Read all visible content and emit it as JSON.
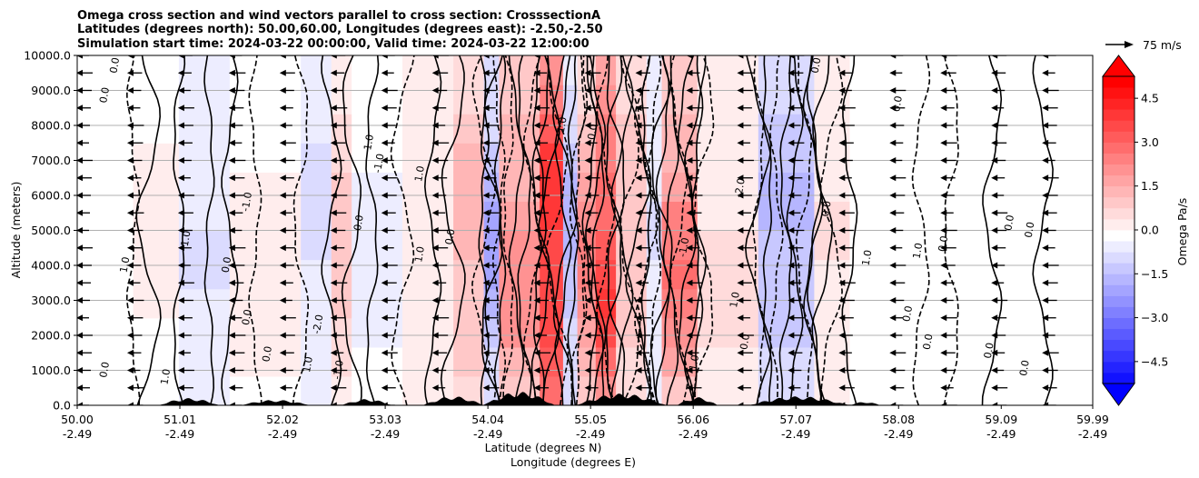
{
  "chart_data": {
    "type": "heatmap",
    "title_lines": [
      "Omega cross section and wind vectors parallel to cross section: CrosssectionA",
      "Latitudes (degrees north): 50.00,60.00, Longitudes (degrees east): -2.50,-2.50",
      "Simulation start time: 2024-03-22 00:00:00, Valid time: 2024-03-22 12:00:00"
    ],
    "xlabel_1": "Latitude (degrees N)",
    "xlabel_2": "Longitude (degrees E)",
    "ylabel": "Altitude (meters)",
    "xlim": [
      50.0,
      59.99
    ],
    "ylim": [
      0,
      10000
    ],
    "x_ticks": [
      {
        "lat": "50.00",
        "lon": "-2.49",
        "v": 50.0
      },
      {
        "lat": "51.01",
        "lon": "-2.49",
        "v": 51.01
      },
      {
        "lat": "52.02",
        "lon": "-2.49",
        "v": 52.02
      },
      {
        "lat": "53.03",
        "lon": "-2.49",
        "v": 53.03
      },
      {
        "lat": "54.04",
        "lon": "-2.49",
        "v": 54.04
      },
      {
        "lat": "55.05",
        "lon": "-2.49",
        "v": 55.05
      },
      {
        "lat": "56.06",
        "lon": "-2.49",
        "v": 56.06
      },
      {
        "lat": "57.07",
        "lon": "-2.49",
        "v": 57.07
      },
      {
        "lat": "58.08",
        "lon": "-2.49",
        "v": 58.08
      },
      {
        "lat": "59.09",
        "lon": "-2.49",
        "v": 59.09
      },
      {
        "lat": "59.99",
        "lon": "-2.49",
        "v": 59.99
      }
    ],
    "y_ticks": [
      {
        "label": "0.0",
        "v": 0
      },
      {
        "label": "1000.0",
        "v": 1000
      },
      {
        "label": "2000.0",
        "v": 2000
      },
      {
        "label": "3000.0",
        "v": 3000
      },
      {
        "label": "4000.0",
        "v": 4000
      },
      {
        "label": "5000.0",
        "v": 5000
      },
      {
        "label": "6000.0",
        "v": 6000
      },
      {
        "label": "7000.0",
        "v": 7000
      },
      {
        "label": "8000.0",
        "v": 8000
      },
      {
        "label": "9000.0",
        "v": 9000
      },
      {
        "label": "10000.0",
        "v": 10000
      }
    ],
    "y_grid": true,
    "colorbar": {
      "label": "Omega Pa/s",
      "range": [
        -5.25,
        5.25
      ],
      "step": 0.375,
      "ticks": [
        "4.5",
        "3.0",
        "1.5",
        "0.0",
        "−1.5",
        "−3.0",
        "−4.5"
      ],
      "tick_values": [
        4.5,
        3.0,
        1.5,
        0.0,
        -1.5,
        -3.0,
        -4.5
      ],
      "extend": "both",
      "colormap": "bwr",
      "neg_color": "#0000ff",
      "pos_color": "#ff0000"
    },
    "quiver_key": "75 m/s",
    "field": {
      "description_of_values": "approximate omega (Pa/s) in vertical bands",
      "bands": [
        {
          "lat_from": 50.0,
          "lat_to": 50.55,
          "omega": -0.1
        },
        {
          "lat_from": 50.55,
          "lat_to": 51.0,
          "omega": 0.3
        },
        {
          "lat_from": 51.0,
          "lat_to": 51.5,
          "omega": -0.6
        },
        {
          "lat_from": 51.5,
          "lat_to": 52.2,
          "omega": 0.3
        },
        {
          "lat_from": 52.2,
          "lat_to": 52.5,
          "omega": -0.8
        },
        {
          "lat_from": 52.5,
          "lat_to": 52.7,
          "omega": 1.3
        },
        {
          "lat_from": 52.7,
          "lat_to": 53.2,
          "omega": -0.3
        },
        {
          "lat_from": 53.2,
          "lat_to": 53.7,
          "omega": 0.5
        },
        {
          "lat_from": 53.7,
          "lat_to": 54.0,
          "omega": 1.8
        },
        {
          "lat_from": 54.0,
          "lat_to": 54.15,
          "omega": -1.8
        },
        {
          "lat_from": 54.15,
          "lat_to": 54.55,
          "omega": 2.6
        },
        {
          "lat_from": 54.55,
          "lat_to": 54.78,
          "omega": 5.4
        },
        {
          "lat_from": 54.78,
          "lat_to": 54.92,
          "omega": -1.5
        },
        {
          "lat_from": 54.92,
          "lat_to": 55.1,
          "omega": 2.6
        },
        {
          "lat_from": 55.1,
          "lat_to": 55.3,
          "omega": 4.6
        },
        {
          "lat_from": 55.3,
          "lat_to": 55.6,
          "omega": 1.5
        },
        {
          "lat_from": 55.6,
          "lat_to": 55.75,
          "omega": -0.6
        },
        {
          "lat_from": 55.75,
          "lat_to": 56.1,
          "omega": 3.0
        },
        {
          "lat_from": 56.1,
          "lat_to": 56.7,
          "omega": 0.8
        },
        {
          "lat_from": 56.7,
          "lat_to": 57.25,
          "omega": -1.6
        },
        {
          "lat_from": 57.25,
          "lat_to": 57.6,
          "omega": 0.6
        },
        {
          "lat_from": 57.6,
          "lat_to": 58.3,
          "omega": -0.2
        },
        {
          "lat_from": 58.3,
          "lat_to": 59.0,
          "omega": 0.2
        },
        {
          "lat_from": 59.0,
          "lat_to": 59.99,
          "omega": 0.1
        }
      ]
    },
    "contour_labels": [
      {
        "text": "0.0",
        "lat": 50.4,
        "alt": 9700
      },
      {
        "text": "0.0",
        "lat": 50.3,
        "alt": 8850
      },
      {
        "text": "1.0",
        "lat": 50.5,
        "alt": 4000
      },
      {
        "text": "0.0",
        "lat": 50.3,
        "alt": 1000
      },
      {
        "text": "1.0",
        "lat": 50.9,
        "alt": 800
      },
      {
        "text": "1.0",
        "lat": 51.1,
        "alt": 4750
      },
      {
        "text": "0.0",
        "lat": 51.5,
        "alt": 4000
      },
      {
        "text": "0.0",
        "lat": 51.7,
        "alt": 2500
      },
      {
        "text": "0.0",
        "lat": 51.9,
        "alt": 1450
      },
      {
        "text": "1.0",
        "lat": 52.3,
        "alt": 1150
      },
      {
        "text": "1.0",
        "lat": 52.9,
        "alt": 7500
      },
      {
        "text": "-1.0",
        "lat": 53.0,
        "alt": 6900
      },
      {
        "text": "1.0",
        "lat": 53.4,
        "alt": 6600
      },
      {
        "text": "1.0",
        "lat": 53.4,
        "alt": 4300
      },
      {
        "text": "0.0",
        "lat": 52.8,
        "alt": 5200
      },
      {
        "text": "0.0",
        "lat": 53.7,
        "alt": 4800
      },
      {
        "text": "1.0",
        "lat": 54.8,
        "alt": 8000
      },
      {
        "text": "0.0",
        "lat": 55.1,
        "alt": 7800
      },
      {
        "text": "1.0",
        "lat": 56.5,
        "alt": 3000
      },
      {
        "text": "0.0",
        "lat": 56.6,
        "alt": 1800
      },
      {
        "text": "1.0",
        "lat": 56.1,
        "alt": 1200
      },
      {
        "text": "0.0",
        "lat": 57.3,
        "alt": 9700
      },
      {
        "text": "0.0",
        "lat": 57.4,
        "alt": 5600
      },
      {
        "text": "1.0",
        "lat": 57.8,
        "alt": 4200
      },
      {
        "text": "0.0",
        "lat": 58.1,
        "alt": 8600
      },
      {
        "text": "0.0",
        "lat": 58.2,
        "alt": 2600
      },
      {
        "text": "0.0",
        "lat": 58.4,
        "alt": 1800
      },
      {
        "text": "1.0",
        "lat": 58.3,
        "alt": 4400
      },
      {
        "text": "0.0",
        "lat": 58.55,
        "alt": 4600
      },
      {
        "text": "0.0",
        "lat": 59.2,
        "alt": 5200
      },
      {
        "text": "0.0",
        "lat": 59.4,
        "alt": 5000
      },
      {
        "text": "0.0",
        "lat": 59.0,
        "alt": 1550
      },
      {
        "text": "0.0",
        "lat": 59.35,
        "alt": 1050
      },
      {
        "text": "-1.0",
        "lat": 56.0,
        "alt": 4500
      },
      {
        "text": "-2.0",
        "lat": 56.55,
        "alt": 6200
      },
      {
        "text": "-1.0",
        "lat": 51.7,
        "alt": 5800
      },
      {
        "text": "-2.0",
        "lat": 52.4,
        "alt": 2300
      },
      {
        "text": "-1.0",
        "lat": 52.6,
        "alt": 1000
      }
    ],
    "wind_vectors": {
      "direction": "toward decreasing latitude (leftward)",
      "lat_step": 0.5,
      "alt_step": 500
    }
  }
}
